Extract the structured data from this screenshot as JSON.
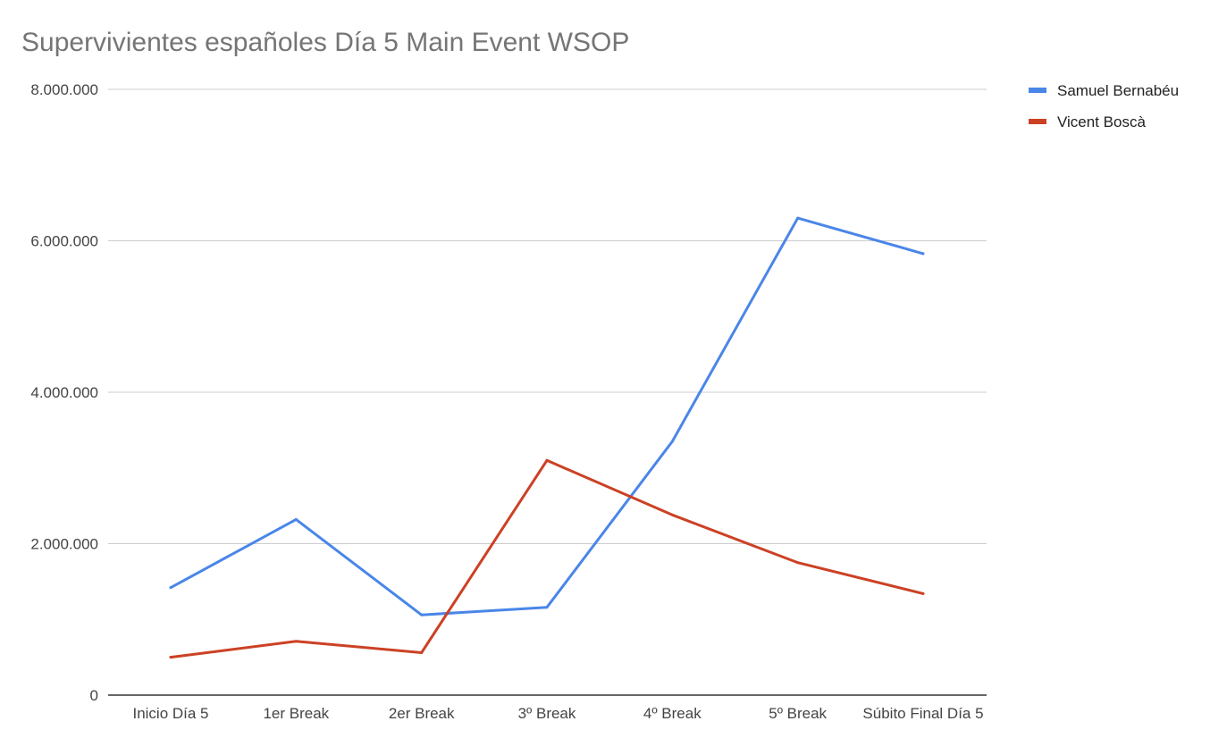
{
  "chart_data": {
    "type": "line",
    "title": "Supervivientes españoles Día 5 Main Event WSOP",
    "xlabel": "",
    "ylabel": "",
    "categories": [
      "Inicio Día 5",
      "1er Break",
      "2er Break",
      "3º Break",
      "4º Break",
      "5º Break",
      "Súbito Final Día 5"
    ],
    "y_ticks": [
      {
        "value": 0,
        "label": "0"
      },
      {
        "value": 2000000,
        "label": "2.000.000"
      },
      {
        "value": 4000000,
        "label": "4.000.000"
      },
      {
        "value": 6000000,
        "label": "6.000.000"
      },
      {
        "value": 8000000,
        "label": "8.000.000"
      }
    ],
    "ylim": [
      0,
      8000000
    ],
    "grid": true,
    "legend_position": "top-right",
    "series": [
      {
        "name": "Samuel Bernabéu",
        "color": "#4a86e8",
        "values": [
          1420000,
          2320000,
          1060000,
          1160000,
          3350000,
          6300000,
          5830000
        ]
      },
      {
        "name": "Vicent Boscà",
        "color": "#cc4125",
        "values": [
          500000,
          710000,
          560000,
          3100000,
          2380000,
          1750000,
          1340000
        ]
      }
    ]
  }
}
